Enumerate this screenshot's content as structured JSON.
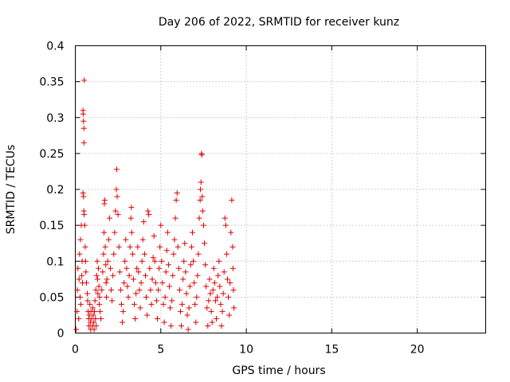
{
  "chart_data": {
    "type": "scatter",
    "title": "Day 206 of 2022, SRMTID for receiver kunz",
    "xlabel": "GPS time / hours",
    "ylabel": "SRMTID / TECUs",
    "xlim": [
      0,
      24
    ],
    "ylim": [
      0,
      0.4
    ],
    "grid": true,
    "marker": "+",
    "color": "#e00000",
    "x_ticks": [
      "0",
      "5",
      "10",
      "15",
      "20"
    ],
    "y_ticks": [
      "0",
      "0.05",
      "0.1",
      "0.15",
      "0.2",
      "0.25",
      "0.3",
      "0.35",
      "0.4"
    ],
    "series": [
      {
        "points": [
          [
            0.05,
            0.005
          ],
          [
            0.1,
            0.03
          ],
          [
            0.12,
            0.06
          ],
          [
            0.15,
            0.09
          ],
          [
            0.2,
            0.02
          ],
          [
            0.22,
            0.075
          ],
          [
            0.25,
            0.11
          ],
          [
            0.28,
            0.05
          ],
          [
            0.3,
            0.13
          ],
          [
            0.32,
            0.04
          ],
          [
            0.35,
            0.15
          ],
          [
            0.38,
            0.08
          ],
          [
            0.4,
            0.1
          ],
          [
            0.42,
            0.07
          ],
          [
            0.45,
            0.31
          ],
          [
            0.46,
            0.305
          ],
          [
            0.48,
            0.295
          ],
          [
            0.5,
            0.285
          ],
          [
            0.5,
            0.265
          ],
          [
            0.52,
            0.352
          ],
          [
            0.45,
            0.195
          ],
          [
            0.48,
            0.19
          ],
          [
            0.5,
            0.17
          ],
          [
            0.52,
            0.165
          ],
          [
            0.55,
            0.15
          ],
          [
            0.58,
            0.12
          ],
          [
            0.6,
            0.1
          ],
          [
            0.62,
            0.085
          ],
          [
            0.65,
            0.07
          ],
          [
            0.7,
            0.055
          ],
          [
            0.72,
            0.045
          ],
          [
            0.75,
            0.03
          ],
          [
            0.78,
            0.02
          ],
          [
            0.8,
            0.01
          ],
          [
            0.82,
            0.025
          ],
          [
            0.85,
            0.04
          ],
          [
            0.88,
            0.015
          ],
          [
            0.9,
            0.005
          ],
          [
            0.92,
            0.03
          ],
          [
            0.95,
            0.02
          ],
          [
            1.0,
            0.01
          ],
          [
            1.02,
            0.035
          ],
          [
            1.05,
            0.025
          ],
          [
            1.08,
            0.015
          ],
          [
            1.1,
            0.005
          ],
          [
            1.12,
            0.03
          ],
          [
            1.15,
            0.045
          ],
          [
            1.18,
            0.02
          ],
          [
            1.2,
            0.06
          ],
          [
            1.22,
            0.01
          ],
          [
            1.25,
            0.08
          ],
          [
            1.28,
            0.1
          ],
          [
            1.3,
            0.075
          ],
          [
            1.32,
            0.055
          ],
          [
            1.35,
            0.09
          ],
          [
            1.38,
            0.065
          ],
          [
            1.4,
            0.04
          ],
          [
            1.42,
            0.05
          ],
          [
            1.45,
            0.03
          ],
          [
            1.5,
            0.02
          ],
          [
            1.55,
            0.06
          ],
          [
            1.6,
            0.085
          ],
          [
            1.65,
            0.11
          ],
          [
            1.68,
            0.14
          ],
          [
            1.7,
            0.18
          ],
          [
            1.72,
            0.185
          ],
          [
            1.75,
            0.12
          ],
          [
            1.78,
            0.095
          ],
          [
            1.8,
            0.07
          ],
          [
            1.82,
            0.05
          ],
          [
            1.85,
            0.075
          ],
          [
            1.9,
            0.1
          ],
          [
            1.95,
            0.13
          ],
          [
            2.0,
            0.16
          ],
          [
            2.05,
            0.09
          ],
          [
            2.1,
            0.06
          ],
          [
            2.15,
            0.045
          ],
          [
            2.2,
            0.08
          ],
          [
            2.25,
            0.11
          ],
          [
            2.3,
            0.14
          ],
          [
            2.35,
            0.17
          ],
          [
            2.4,
            0.2
          ],
          [
            2.42,
            0.228
          ],
          [
            2.45,
            0.19
          ],
          [
            2.5,
            0.165
          ],
          [
            2.55,
            0.12
          ],
          [
            2.6,
            0.085
          ],
          [
            2.65,
            0.06
          ],
          [
            2.7,
            0.04
          ],
          [
            2.75,
            0.015
          ],
          [
            2.8,
            0.03
          ],
          [
            2.85,
            0.07
          ],
          [
            2.9,
            0.1
          ],
          [
            2.95,
            0.13
          ],
          [
            3.0,
            0.09
          ],
          [
            3.05,
            0.065
          ],
          [
            3.1,
            0.05
          ],
          [
            3.15,
            0.08
          ],
          [
            3.2,
            0.12
          ],
          [
            3.25,
            0.16
          ],
          [
            3.28,
            0.175
          ],
          [
            3.3,
            0.14
          ],
          [
            3.35,
            0.11
          ],
          [
            3.4,
            0.075
          ],
          [
            3.45,
            0.04
          ],
          [
            3.5,
            0.02
          ],
          [
            3.55,
            0.055
          ],
          [
            3.6,
            0.09
          ],
          [
            3.65,
            0.12
          ],
          [
            3.7,
            0.085
          ],
          [
            3.75,
            0.06
          ],
          [
            3.8,
            0.035
          ],
          [
            3.85,
            0.07
          ],
          [
            3.9,
            0.1
          ],
          [
            3.95,
            0.13
          ],
          [
            4.0,
            0.155
          ],
          [
            4.05,
            0.11
          ],
          [
            4.1,
            0.08
          ],
          [
            4.15,
            0.05
          ],
          [
            4.2,
            0.025
          ],
          [
            4.25,
            0.17
          ],
          [
            4.3,
            0.165
          ],
          [
            4.35,
            0.09
          ],
          [
            4.4,
            0.06
          ],
          [
            4.45,
            0.04
          ],
          [
            4.5,
            0.075
          ],
          [
            4.55,
            0.105
          ],
          [
            4.6,
            0.135
          ],
          [
            4.65,
            0.1
          ],
          [
            4.7,
            0.07
          ],
          [
            4.75,
            0.045
          ],
          [
            4.8,
            0.02
          ],
          [
            4.85,
            0.06
          ],
          [
            4.9,
            0.09
          ],
          [
            4.95,
            0.12
          ],
          [
            5.0,
            0.15
          ],
          [
            5.05,
            0.1
          ],
          [
            5.1,
            0.07
          ],
          [
            5.15,
            0.04
          ],
          [
            5.2,
            0.015
          ],
          [
            5.25,
            0.05
          ],
          [
            5.3,
            0.085
          ],
          [
            5.35,
            0.115
          ],
          [
            5.4,
            0.14
          ],
          [
            5.45,
            0.095
          ],
          [
            5.5,
            0.065
          ],
          [
            5.55,
            0.035
          ],
          [
            5.6,
            0.01
          ],
          [
            5.65,
            0.045
          ],
          [
            5.7,
            0.08
          ],
          [
            5.75,
            0.11
          ],
          [
            5.8,
            0.13
          ],
          [
            5.85,
            0.16
          ],
          [
            5.9,
            0.185
          ],
          [
            5.95,
            0.195
          ],
          [
            6.0,
            0.12
          ],
          [
            6.05,
            0.09
          ],
          [
            6.1,
            0.06
          ],
          [
            6.15,
            0.03
          ],
          [
            6.2,
            0.01
          ],
          [
            6.25,
            0.04
          ],
          [
            6.3,
            0.075
          ],
          [
            6.35,
            0.1
          ],
          [
            6.4,
            0.125
          ],
          [
            6.45,
            0.085
          ],
          [
            6.5,
            0.055
          ],
          [
            6.55,
            0.025
          ],
          [
            6.6,
            0.005
          ],
          [
            6.65,
            0.035
          ],
          [
            6.7,
            0.065
          ],
          [
            6.75,
            0.095
          ],
          [
            6.8,
            0.12
          ],
          [
            6.85,
            0.14
          ],
          [
            6.9,
            0.1
          ],
          [
            6.95,
            0.07
          ],
          [
            7.0,
            0.04
          ],
          [
            7.05,
            0.015
          ],
          [
            7.1,
            0.05
          ],
          [
            7.15,
            0.08
          ],
          [
            7.2,
            0.11
          ],
          [
            7.25,
            0.16
          ],
          [
            7.3,
            0.185
          ],
          [
            7.32,
            0.2
          ],
          [
            7.35,
            0.21
          ],
          [
            7.38,
            0.25
          ],
          [
            7.4,
            0.248
          ],
          [
            7.42,
            0.19
          ],
          [
            7.45,
            0.17
          ],
          [
            7.5,
            0.15
          ],
          [
            7.55,
            0.125
          ],
          [
            7.6,
            0.095
          ],
          [
            7.65,
            0.065
          ],
          [
            7.7,
            0.035
          ],
          [
            7.75,
            0.01
          ],
          [
            7.8,
            0.045
          ],
          [
            7.85,
            0.075
          ],
          [
            7.9,
            0.055
          ],
          [
            7.95,
            0.03
          ],
          [
            8.0,
            0.015
          ],
          [
            8.05,
            0.06
          ],
          [
            8.1,
            0.09
          ],
          [
            8.15,
            0.07
          ],
          [
            8.2,
            0.045
          ],
          [
            8.25,
            0.02
          ],
          [
            8.3,
            0.05
          ],
          [
            8.35,
            0.08
          ],
          [
            8.4,
            0.1
          ],
          [
            8.45,
            0.065
          ],
          [
            8.5,
            0.04
          ],
          [
            8.55,
            0.01
          ],
          [
            8.6,
            0.03
          ],
          [
            8.65,
            0.055
          ],
          [
            8.7,
            0.085
          ],
          [
            8.75,
            0.16
          ],
          [
            8.8,
            0.15
          ],
          [
            8.85,
            0.11
          ],
          [
            8.9,
            0.075
          ],
          [
            8.95,
            0.05
          ],
          [
            9.0,
            0.025
          ],
          [
            9.05,
            0.07
          ],
          [
            9.1,
            0.14
          ],
          [
            9.15,
            0.185
          ],
          [
            9.2,
            0.12
          ],
          [
            9.22,
            0.09
          ],
          [
            9.25,
            0.06
          ],
          [
            9.28,
            0.035
          ]
        ]
      }
    ]
  }
}
